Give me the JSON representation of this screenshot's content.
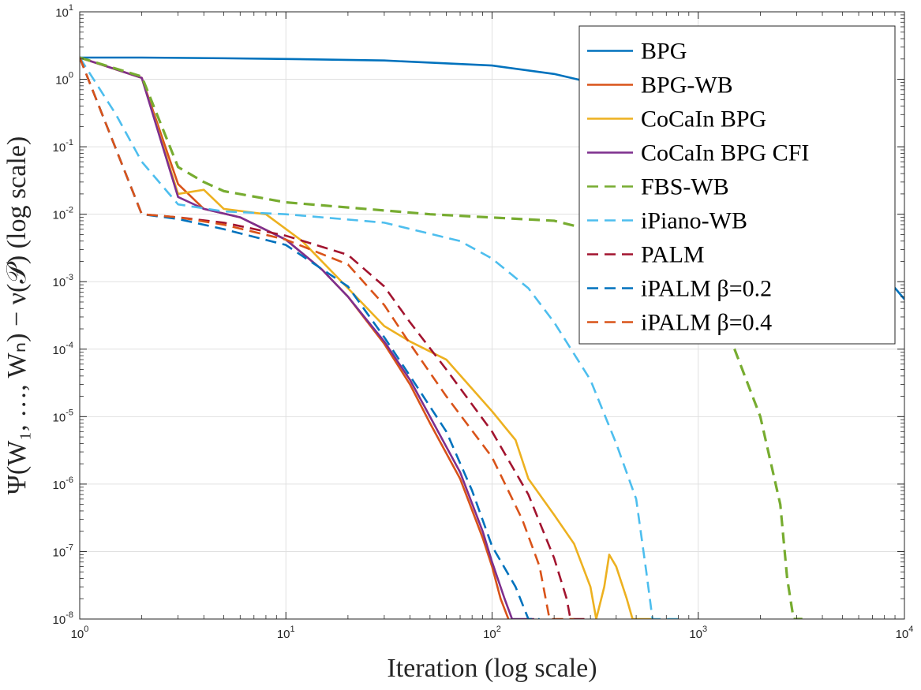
{
  "chart_data": {
    "type": "line",
    "xlabel": "Iteration (log scale)",
    "ylabel": "Ψ(W₁, …, Wₙ) − ν(𝒫) (log scale)",
    "x_scale": "log",
    "y_scale": "log",
    "xlim": [
      1,
      10000
    ],
    "ylim": [
      1e-08,
      10
    ],
    "x_ticks": [
      {
        "value": 1,
        "base": "10",
        "exp": "0"
      },
      {
        "value": 10,
        "base": "10",
        "exp": "1"
      },
      {
        "value": 100,
        "base": "10",
        "exp": "2"
      },
      {
        "value": 1000,
        "base": "10",
        "exp": "3"
      },
      {
        "value": 10000,
        "base": "10",
        "exp": "4"
      }
    ],
    "y_ticks": [
      {
        "value": 1e-08,
        "base": "10",
        "exp": "-8"
      },
      {
        "value": 1e-07,
        "base": "10",
        "exp": "-7"
      },
      {
        "value": 1e-06,
        "base": "10",
        "exp": "-6"
      },
      {
        "value": 1e-05,
        "base": "10",
        "exp": "-5"
      },
      {
        "value": 0.0001,
        "base": "10",
        "exp": "-4"
      },
      {
        "value": 0.001,
        "base": "10",
        "exp": "-3"
      },
      {
        "value": 0.01,
        "base": "10",
        "exp": "-2"
      },
      {
        "value": 0.1,
        "base": "10",
        "exp": "-1"
      },
      {
        "value": 1,
        "base": "10",
        "exp": "0"
      },
      {
        "value": 10,
        "base": "10",
        "exp": "1"
      }
    ],
    "grid": true,
    "legend_position": "top-right",
    "series": [
      {
        "name": "BPG",
        "color": "#0072BD",
        "dash": "solid",
        "points": [
          [
            1,
            2.1
          ],
          [
            2,
            2.1
          ],
          [
            5,
            2.05
          ],
          [
            10,
            2.0
          ],
          [
            30,
            1.9
          ],
          [
            100,
            1.6
          ],
          [
            200,
            1.2
          ],
          [
            300,
            0.9
          ],
          [
            500,
            0.5
          ],
          [
            800,
            0.2
          ],
          [
            1000,
            0.13
          ],
          [
            1500,
            0.04
          ],
          [
            2000,
            0.018
          ],
          [
            3000,
            0.008
          ],
          [
            5000,
            0.004
          ],
          [
            7000,
            0.002
          ],
          [
            10000,
            0.00055
          ]
        ]
      },
      {
        "name": "BPG-WB",
        "color": "#D95319",
        "dash": "solid",
        "points": [
          [
            1,
            2.1
          ],
          [
            2,
            1.05
          ],
          [
            3,
            0.028
          ],
          [
            4,
            0.012
          ],
          [
            6,
            0.009
          ],
          [
            10,
            0.0042
          ],
          [
            15,
            0.0015
          ],
          [
            20,
            0.0006
          ],
          [
            30,
            0.00012
          ],
          [
            40,
            3e-05
          ],
          [
            50,
            8e-06
          ],
          [
            70,
            1.2e-06
          ],
          [
            90,
            1.6e-07
          ],
          [
            100,
            6e-08
          ],
          [
            110,
            2e-08
          ],
          [
            120,
            1e-08
          ]
        ]
      },
      {
        "name": "CoCaIn BPG",
        "color": "#EDB120",
        "dash": "solid",
        "points": [
          [
            1,
            2.1
          ],
          [
            2,
            1.05
          ],
          [
            3,
            0.02
          ],
          [
            4,
            0.023
          ],
          [
            5,
            0.012
          ],
          [
            8,
            0.01
          ],
          [
            12,
            0.004
          ],
          [
            20,
            0.0008
          ],
          [
            30,
            0.00022
          ],
          [
            40,
            0.00013
          ],
          [
            60,
            7e-05
          ],
          [
            100,
            1.2e-05
          ],
          [
            130,
            4.5e-06
          ],
          [
            150,
            1.2e-06
          ],
          [
            200,
            3.5e-07
          ],
          [
            250,
            1.3e-07
          ],
          [
            300,
            3e-08
          ],
          [
            320,
            1e-08
          ],
          [
            350,
            3e-08
          ],
          [
            370,
            9e-08
          ],
          [
            400,
            6e-08
          ],
          [
            450,
            2e-08
          ],
          [
            480,
            1e-08
          ],
          [
            600,
            1e-08
          ]
        ]
      },
      {
        "name": "CoCaIn BPG CFI",
        "color": "#7E2F8E",
        "dash": "solid",
        "points": [
          [
            1,
            2.1
          ],
          [
            2,
            1.05
          ],
          [
            3,
            0.018
          ],
          [
            4,
            0.012
          ],
          [
            6,
            0.009
          ],
          [
            10,
            0.0042
          ],
          [
            15,
            0.0015
          ],
          [
            20,
            0.0006
          ],
          [
            30,
            0.00013
          ],
          [
            40,
            3.5e-05
          ],
          [
            50,
            1e-05
          ],
          [
            70,
            1.5e-06
          ],
          [
            90,
            2e-07
          ],
          [
            100,
            7e-08
          ],
          [
            115,
            2e-08
          ],
          [
            125,
            1e-08
          ],
          [
            160,
            1e-08
          ]
        ]
      },
      {
        "name": "FBS-WB",
        "color": "#77AC30",
        "dash": "dashed",
        "points": [
          [
            1,
            2.1
          ],
          [
            2,
            1.1
          ],
          [
            3,
            0.05
          ],
          [
            4,
            0.03
          ],
          [
            5,
            0.022
          ],
          [
            10,
            0.015
          ],
          [
            50,
            0.01
          ],
          [
            200,
            0.008
          ],
          [
            500,
            0.004
          ],
          [
            1000,
            0.001
          ],
          [
            1500,
            0.0001
          ],
          [
            2000,
            1e-05
          ],
          [
            2500,
            5e-07
          ],
          [
            2700,
            4e-08
          ],
          [
            2900,
            1e-08
          ],
          [
            3200,
            1e-08
          ]
        ]
      },
      {
        "name": "iPiano-WB",
        "color": "#4DBEEE",
        "dash": "dashed",
        "points": [
          [
            1,
            2.1
          ],
          [
            1.5,
            0.3
          ],
          [
            2,
            0.06
          ],
          [
            3,
            0.014
          ],
          [
            5,
            0.011
          ],
          [
            10,
            0.01
          ],
          [
            30,
            0.0075
          ],
          [
            70,
            0.004
          ],
          [
            100,
            0.0022
          ],
          [
            150,
            0.0008
          ],
          [
            200,
            0.00025
          ],
          [
            300,
            3.5e-05
          ],
          [
            400,
            4e-06
          ],
          [
            500,
            6e-07
          ],
          [
            560,
            5e-08
          ],
          [
            600,
            1e-08
          ],
          [
            800,
            1e-08
          ]
        ]
      },
      {
        "name": "PALM",
        "color": "#A2142F",
        "dash": "dashed",
        "points": [
          [
            1,
            2.1
          ],
          [
            2,
            0.01
          ],
          [
            3,
            0.009
          ],
          [
            5,
            0.0075
          ],
          [
            10,
            0.0048
          ],
          [
            20,
            0.0025
          ],
          [
            30,
            0.00085
          ],
          [
            40,
            0.00025
          ],
          [
            60,
            5e-05
          ],
          [
            100,
            6e-06
          ],
          [
            150,
            7e-07
          ],
          [
            200,
            8e-08
          ],
          [
            230,
            2e-08
          ],
          [
            240,
            1e-08
          ],
          [
            300,
            1e-08
          ]
        ]
      },
      {
        "name": "iPALM β=0.2",
        "color": "#0072BD",
        "dash": "dashed",
        "points": [
          [
            1,
            2.1
          ],
          [
            2,
            0.01
          ],
          [
            3,
            0.0085
          ],
          [
            5,
            0.006
          ],
          [
            10,
            0.0035
          ],
          [
            20,
            0.00085
          ],
          [
            30,
            0.00015
          ],
          [
            40,
            4e-05
          ],
          [
            60,
            6e-06
          ],
          [
            80,
            8e-07
          ],
          [
            100,
            1.2e-07
          ],
          [
            130,
            3e-08
          ],
          [
            150,
            1e-08
          ],
          [
            170,
            1e-08
          ]
        ]
      },
      {
        "name": "iPALM β=0.4",
        "color": "#D95319",
        "dash": "dashed",
        "points": [
          [
            1,
            2.1
          ],
          [
            2,
            0.01
          ],
          [
            3,
            0.009
          ],
          [
            5,
            0.007
          ],
          [
            10,
            0.0042
          ],
          [
            20,
            0.0018
          ],
          [
            30,
            0.00045
          ],
          [
            40,
            0.00012
          ],
          [
            60,
            2e-05
          ],
          [
            100,
            2.5e-06
          ],
          [
            140,
            3e-07
          ],
          [
            170,
            6e-08
          ],
          [
            190,
            1e-08
          ],
          [
            250,
            1e-08
          ]
        ]
      }
    ]
  }
}
